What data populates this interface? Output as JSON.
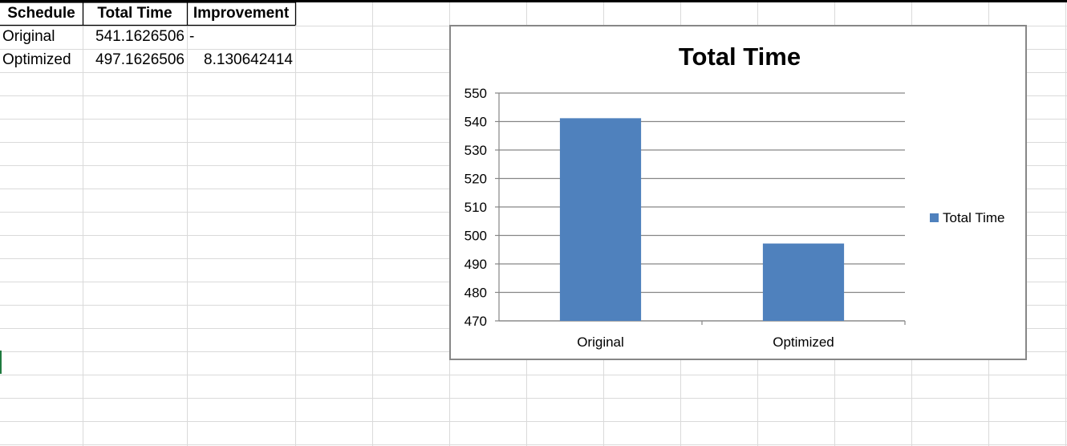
{
  "table": {
    "headers": [
      "Schedule",
      "Total Time",
      "Improvement"
    ],
    "rows": [
      {
        "schedule": "Original",
        "total_time": "541.1626506",
        "improvement": "-"
      },
      {
        "schedule": "Optimized",
        "total_time": "497.1626506",
        "improvement": "8.130642414"
      }
    ]
  },
  "chart_data": {
    "type": "bar",
    "title": "Total Time",
    "categories": [
      "Original",
      "Optimized"
    ],
    "series": [
      {
        "name": "Total Time",
        "values": [
          541.1626506,
          497.1626506
        ],
        "color": "#4f81bd"
      }
    ],
    "ylim": [
      470,
      550
    ],
    "yticks": [
      470,
      480,
      490,
      500,
      510,
      520,
      530,
      540,
      550
    ],
    "xlabel": "",
    "ylabel": "",
    "grid": true,
    "legend": "right"
  }
}
